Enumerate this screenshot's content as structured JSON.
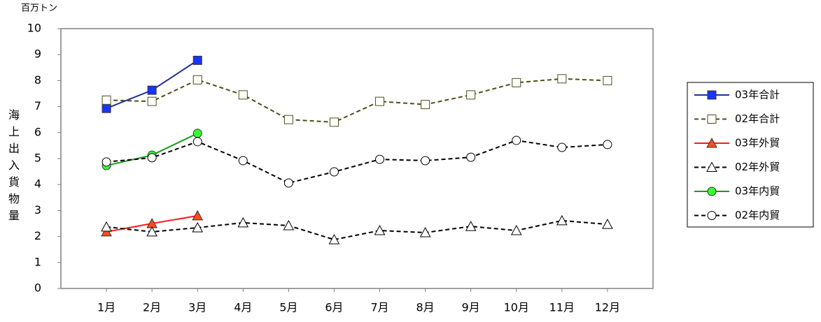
{
  "chart_data": {
    "type": "line",
    "unit_label": "百万トン",
    "ylabel": "海上出入貨物量",
    "categories": [
      "1月",
      "2月",
      "3月",
      "4月",
      "5月",
      "6月",
      "7月",
      "8月",
      "9月",
      "10月",
      "11月",
      "12月"
    ],
    "ylim": [
      0,
      10
    ],
    "yticks": [
      0,
      1,
      2,
      3,
      4,
      5,
      6,
      7,
      8,
      9,
      10
    ],
    "grid": false,
    "legend": "right",
    "series": [
      {
        "name": "03年合計",
        "color": "#1f2f9a",
        "marker": "square",
        "marker_color": "#1a33ff",
        "dashed": false,
        "values": [
          6.93,
          7.63,
          8.78,
          null,
          null,
          null,
          null,
          null,
          null,
          null,
          null,
          null
        ]
      },
      {
        "name": "02年合計",
        "color": "#4d4d1a",
        "marker": "square",
        "marker_color": "#ffffff",
        "dashed": true,
        "values": [
          7.25,
          7.2,
          8.03,
          7.45,
          6.5,
          6.4,
          7.2,
          7.08,
          7.45,
          7.92,
          8.07,
          8.0
        ]
      },
      {
        "name": "03年外貿",
        "color": "#ff1a1a",
        "marker": "triangle",
        "marker_color": "#ff4d1a",
        "dashed": false,
        "values": [
          2.18,
          2.5,
          2.8,
          null,
          null,
          null,
          null,
          null,
          null,
          null,
          null,
          null
        ]
      },
      {
        "name": "02年外貿",
        "color": "#000000",
        "marker": "triangle",
        "marker_color": "#ffffff",
        "dashed": true,
        "values": [
          2.37,
          2.18,
          2.34,
          2.53,
          2.42,
          1.88,
          2.23,
          2.15,
          2.39,
          2.23,
          2.61,
          2.47
        ]
      },
      {
        "name": "03年内貿",
        "color": "#1a9a1a",
        "marker": "circle",
        "marker_color": "#33ff33",
        "dashed": false,
        "values": [
          4.73,
          5.13,
          5.97,
          null,
          null,
          null,
          null,
          null,
          null,
          null,
          null,
          null
        ]
      },
      {
        "name": "02年内貿",
        "color": "#000000",
        "marker": "circle",
        "marker_color": "#ffffff",
        "dashed": true,
        "values": [
          4.87,
          5.03,
          5.65,
          4.92,
          4.06,
          4.49,
          4.97,
          4.92,
          5.05,
          5.7,
          5.43,
          5.54
        ]
      }
    ]
  }
}
